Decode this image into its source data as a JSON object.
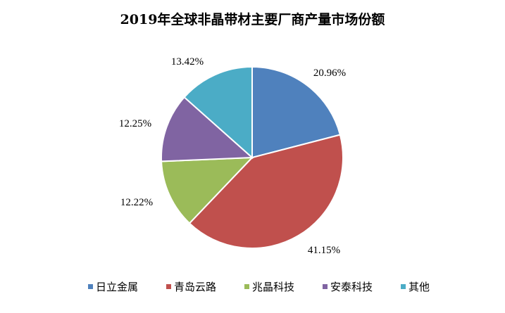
{
  "chart_data": {
    "type": "pie",
    "title": "2019年全球非晶带材主要厂商产量市场份额",
    "categories": [
      "日立金属",
      "青岛云路",
      "兆晶科技",
      "安泰科技",
      "其他"
    ],
    "values": [
      20.96,
      41.15,
      12.22,
      12.25,
      13.42
    ],
    "value_labels": [
      "20.96%",
      "41.15%",
      "12.22%",
      "12.25%",
      "13.42%"
    ],
    "colors": [
      "#4F81BD",
      "#C0504D",
      "#9BBB59",
      "#8064A2",
      "#4BACC6"
    ],
    "legend_position": "bottom",
    "start_angle": "12 o'clock",
    "direction": "clockwise"
  }
}
